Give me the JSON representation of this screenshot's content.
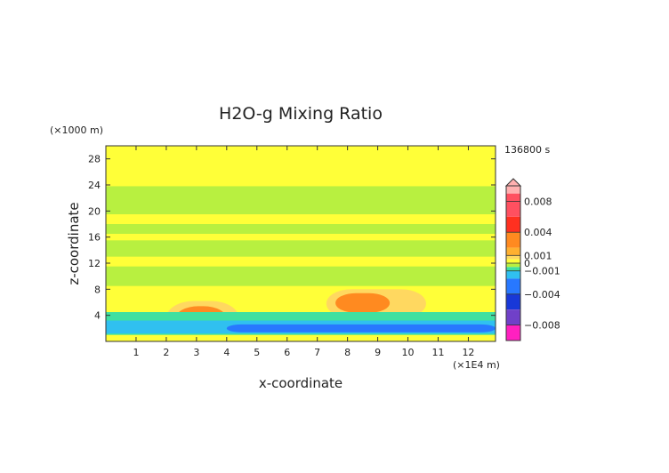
{
  "chart_data": {
    "type": "heatmap",
    "title": "H2O-g Mixing Ratio",
    "xlabel": "x-coordinate",
    "ylabel": "z-coordinate",
    "x_unit": "(×1E4 m)",
    "y_unit": "(×1000 m)",
    "time_label": "136800 s",
    "xlim": [
      0,
      12.9
    ],
    "ylim": [
      0,
      30
    ],
    "x_ticks": [
      1,
      2,
      3,
      4,
      5,
      6,
      7,
      8,
      9,
      10,
      11,
      12
    ],
    "y_ticks": [
      4,
      8,
      12,
      16,
      20,
      24,
      28
    ],
    "background_level": "near zero",
    "colorbar": {
      "range": [
        -0.01,
        0.01
      ],
      "tick_values": [
        0.008,
        0.004,
        0.001,
        0,
        -0.001,
        -0.004,
        -0.008
      ],
      "tick_labels": [
        "0.008",
        "0.004",
        "0.001",
        "0",
        "−0.001",
        "−0.004",
        "−0.008"
      ],
      "bands": [
        {
          "from": 0.009,
          "to": 0.01,
          "color": "#ffb0b0"
        },
        {
          "from": 0.006,
          "to": 0.009,
          "color": "#ff5060"
        },
        {
          "from": 0.004,
          "to": 0.006,
          "color": "#ff3020"
        },
        {
          "from": 0.002,
          "to": 0.004,
          "color": "#ff8a20"
        },
        {
          "from": 0.001,
          "to": 0.002,
          "color": "#ffb030"
        },
        {
          "from": 0.0005,
          "to": 0.001,
          "color": "#ffd860"
        },
        {
          "from": 0,
          "to": 0.0005,
          "color": "#ffff38"
        },
        {
          "from": -0.0005,
          "to": 0,
          "color": "#b8f040"
        },
        {
          "from": -0.001,
          "to": -0.0005,
          "color": "#40e0a0"
        },
        {
          "from": -0.002,
          "to": -0.001,
          "color": "#30c0f0"
        },
        {
          "from": -0.004,
          "to": -0.002,
          "color": "#2878ff"
        },
        {
          "from": -0.006,
          "to": -0.004,
          "color": "#1838d8"
        },
        {
          "from": -0.008,
          "to": -0.006,
          "color": "#7040c8"
        },
        {
          "from": -0.01,
          "to": -0.008,
          "color": "#ff20c0"
        }
      ]
    },
    "regions": [
      {
        "level": "positive 0.0005-0.001",
        "color": "#ffd860",
        "x": [
          2.0,
          4.4
        ],
        "z": [
          1.0,
          6.2
        ]
      },
      {
        "level": "positive 0.002-0.004",
        "color": "#ff8a20",
        "x": [
          2.3,
          4.0
        ],
        "z": [
          1.6,
          5.4
        ]
      },
      {
        "level": "positive 0.0005-0.001",
        "color": "#ffd860",
        "x": [
          7.3,
          10.6
        ],
        "z": [
          3.6,
          8.0
        ]
      },
      {
        "level": "positive 0.002-0.004",
        "color": "#ff8a20",
        "x": [
          7.6,
          9.4
        ],
        "z": [
          4.4,
          7.4
        ]
      },
      {
        "level": "negative −0.0005-0",
        "color": "#b8f040",
        "x": [
          0,
          12.9
        ],
        "z": [
          8.5,
          11.5
        ]
      },
      {
        "level": "negative −0.0005-0",
        "color": "#b8f040",
        "x": [
          0,
          12.9
        ],
        "z": [
          13.0,
          15.5
        ]
      },
      {
        "level": "negative −0.0005-0",
        "color": "#b8f040",
        "x": [
          0,
          12.9
        ],
        "z": [
          16.5,
          18.0
        ]
      },
      {
        "level": "negative −0.0005-0",
        "color": "#b8f040",
        "x": [
          0,
          12.9
        ],
        "z": [
          19.5,
          23.8
        ]
      },
      {
        "level": "negative −0.001-−0.0005",
        "color": "#40e0a0",
        "x": [
          0,
          12.9
        ],
        "z": [
          1.0,
          4.5
        ]
      },
      {
        "level": "negative −0.002-−0.001",
        "color": "#30c0f0",
        "x": [
          0,
          12.9
        ],
        "z": [
          1.2,
          3.2
        ]
      },
      {
        "level": "negative −0.004-−0.002",
        "color": "#2878ff",
        "x": [
          4.0,
          12.9
        ],
        "z": [
          1.4,
          2.6
        ]
      }
    ]
  }
}
